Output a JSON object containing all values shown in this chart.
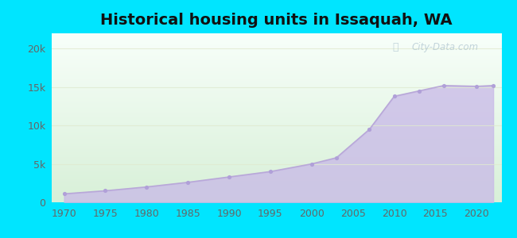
{
  "title": "Historical housing units in Issaquah, WA",
  "years": [
    1970,
    1975,
    1980,
    1985,
    1990,
    1995,
    2000,
    2003,
    2007,
    2010,
    2013,
    2016,
    2020,
    2022
  ],
  "values": [
    1100,
    1500,
    2000,
    2600,
    3300,
    4000,
    5000,
    5800,
    9500,
    13800,
    14500,
    15200,
    15100,
    15200
  ],
  "fill_color": "#c8b8e8",
  "fill_alpha": 0.75,
  "line_color": "#b8a8d8",
  "marker_color": "#b0a0d8",
  "bg_outer": "#00e5ff",
  "bg_gradient_top": "#f8fffa",
  "bg_gradient_bottom": "#d8f0d8",
  "yticks": [
    0,
    5000,
    10000,
    15000,
    20000
  ],
  "ytick_labels": [
    "0",
    "5k",
    "10k",
    "15k",
    "20k"
  ],
  "xticks": [
    1970,
    1975,
    1980,
    1985,
    1990,
    1995,
    2000,
    2005,
    2010,
    2015,
    2020
  ],
  "ylim": [
    0,
    22000
  ],
  "xlim": [
    1968.5,
    2023
  ],
  "title_fontsize": 14,
  "watermark_text": "City-Data.com",
  "watermark_color": "#a0b8c8",
  "watermark_alpha": 0.6,
  "grid_color": "#e0ead0",
  "grid_alpha": 0.8
}
